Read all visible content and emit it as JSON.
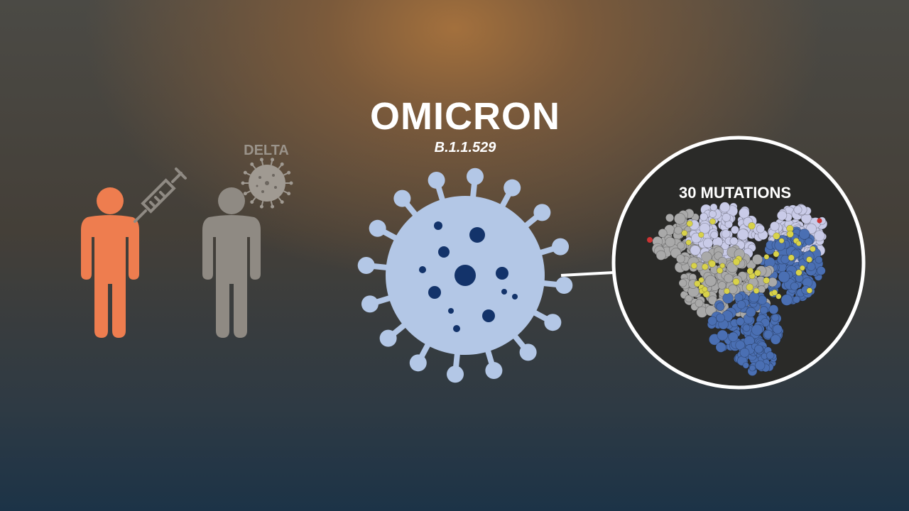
{
  "title": "OMICRON",
  "subtitle": "B.1.1.529",
  "delta_label": "DELTA",
  "mutations_label": "30 MUTATIONS",
  "colors": {
    "vaccinated_person": "#ee7d4f",
    "other_person": "#8f8a83",
    "virus_body": "#b3c7e6",
    "virus_dots": "#13336a",
    "circle_border": "#ffffff",
    "protein_grey": "#a9a9a9",
    "protein_lavender": "#c9cbe8",
    "protein_blue": "#4a6fb3",
    "mutation_yellow": "#d8d24a"
  },
  "icons": [
    "person-icon",
    "syringe-icon",
    "delta-virus-icon",
    "omicron-virus-icon",
    "spike-protein-image"
  ]
}
